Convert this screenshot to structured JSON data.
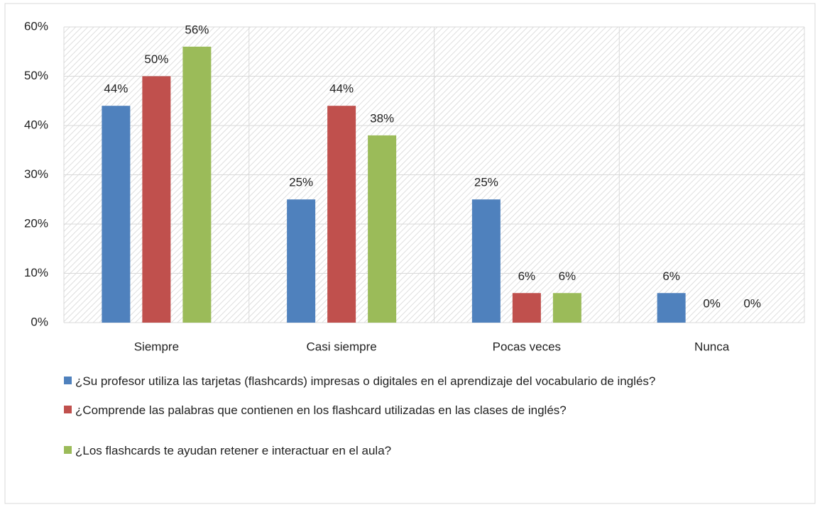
{
  "chart_data": {
    "type": "bar",
    "categories": [
      "Siempre",
      "Casi siempre",
      "Pocas veces",
      "Nunca"
    ],
    "series": [
      {
        "name": "¿Su profesor utiliza las tarjetas (flashcards) impresas o digitales en el aprendizaje del vocabulario de inglés?",
        "color": "#4f81bd",
        "values": [
          44,
          25,
          25,
          6
        ],
        "value_labels": [
          "44%",
          "25%",
          "25%",
          "6%"
        ]
      },
      {
        "name": "¿Comprende las palabras que contienen en los flashcard utilizadas en las clases de inglés?",
        "color": "#c0504d",
        "values": [
          50,
          44,
          6,
          0
        ],
        "value_labels": [
          "50%",
          "44%",
          "6%",
          "0%"
        ]
      },
      {
        "name": "¿Los flashcards  te ayudan retener e interactuar en el aula?",
        "color": "#9bbb59",
        "values": [
          56,
          38,
          6,
          0
        ],
        "value_labels": [
          "56%",
          "38%",
          "6%",
          "0%"
        ]
      }
    ],
    "ylim": [
      0,
      60
    ],
    "yticks": [
      {
        "value": 0,
        "label": "0%"
      },
      {
        "value": 10,
        "label": "10%"
      },
      {
        "value": 20,
        "label": "20%"
      },
      {
        "value": 30,
        "label": "30%"
      },
      {
        "value": 40,
        "label": "40%"
      },
      {
        "value": 50,
        "label": "50%"
      },
      {
        "value": 60,
        "label": "60%"
      }
    ],
    "grid": true,
    "legend": "bottom"
  }
}
